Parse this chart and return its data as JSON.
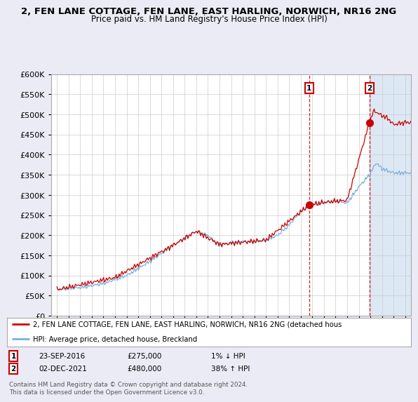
{
  "title1": "2, FEN LANE COTTAGE, FEN LANE, EAST HARLING, NORWICH, NR16 2NG",
  "title2": "Price paid vs. HM Land Registry's House Price Index (HPI)",
  "legend_line1": "2, FEN LANE COTTAGE, FEN LANE, EAST HARLING, NORWICH, NR16 2NG (detached hous",
  "legend_line2": "HPI: Average price, detached house, Breckland",
  "footnote": "Contains HM Land Registry data © Crown copyright and database right 2024.\nThis data is licensed under the Open Government Licence v3.0.",
  "sale1_date": "23-SEP-2016",
  "sale1_price": 275000,
  "sale1_label": "1% ↓ HPI",
  "sale2_date": "02-DEC-2021",
  "sale2_price": 480000,
  "sale2_label": "38% ↑ HPI",
  "sale1_x": 2016.73,
  "sale2_x": 2021.92,
  "ylim": [
    0,
    600000
  ],
  "xlim": [
    1994.5,
    2025.5
  ],
  "background_color": "#ebebf5",
  "plot_bg": "#ffffff",
  "line_color_red": "#cc0000",
  "line_color_blue": "#7aafda",
  "grid_color": "#cccccc",
  "shade_color": "#dde8f5"
}
